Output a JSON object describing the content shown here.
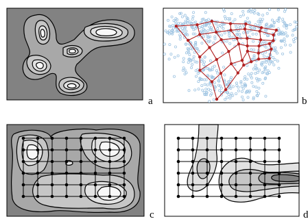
{
  "panels": [
    {
      "id": "a",
      "label": "a",
      "content": "gaussian-mixture-density-contours"
    },
    {
      "id": "b",
      "label": "b",
      "content": "self-organizing-map-grid-over-scatter"
    },
    {
      "id": "c",
      "label": "c",
      "content": "density-contours-with-node-grid"
    },
    {
      "id": "d",
      "label": "d",
      "content": "sparse-density-contours-with-node-grid"
    }
  ],
  "colors": {
    "background_dark": "#828282",
    "level_1": "#a8a8a8",
    "level_2": "#c6c6c6",
    "level_3": "#e2e2e2",
    "level_4": "#f8f8f8",
    "scatter_point": "#9ec4e2",
    "som_grid": "#b22222",
    "grid_node": "#000000"
  }
}
